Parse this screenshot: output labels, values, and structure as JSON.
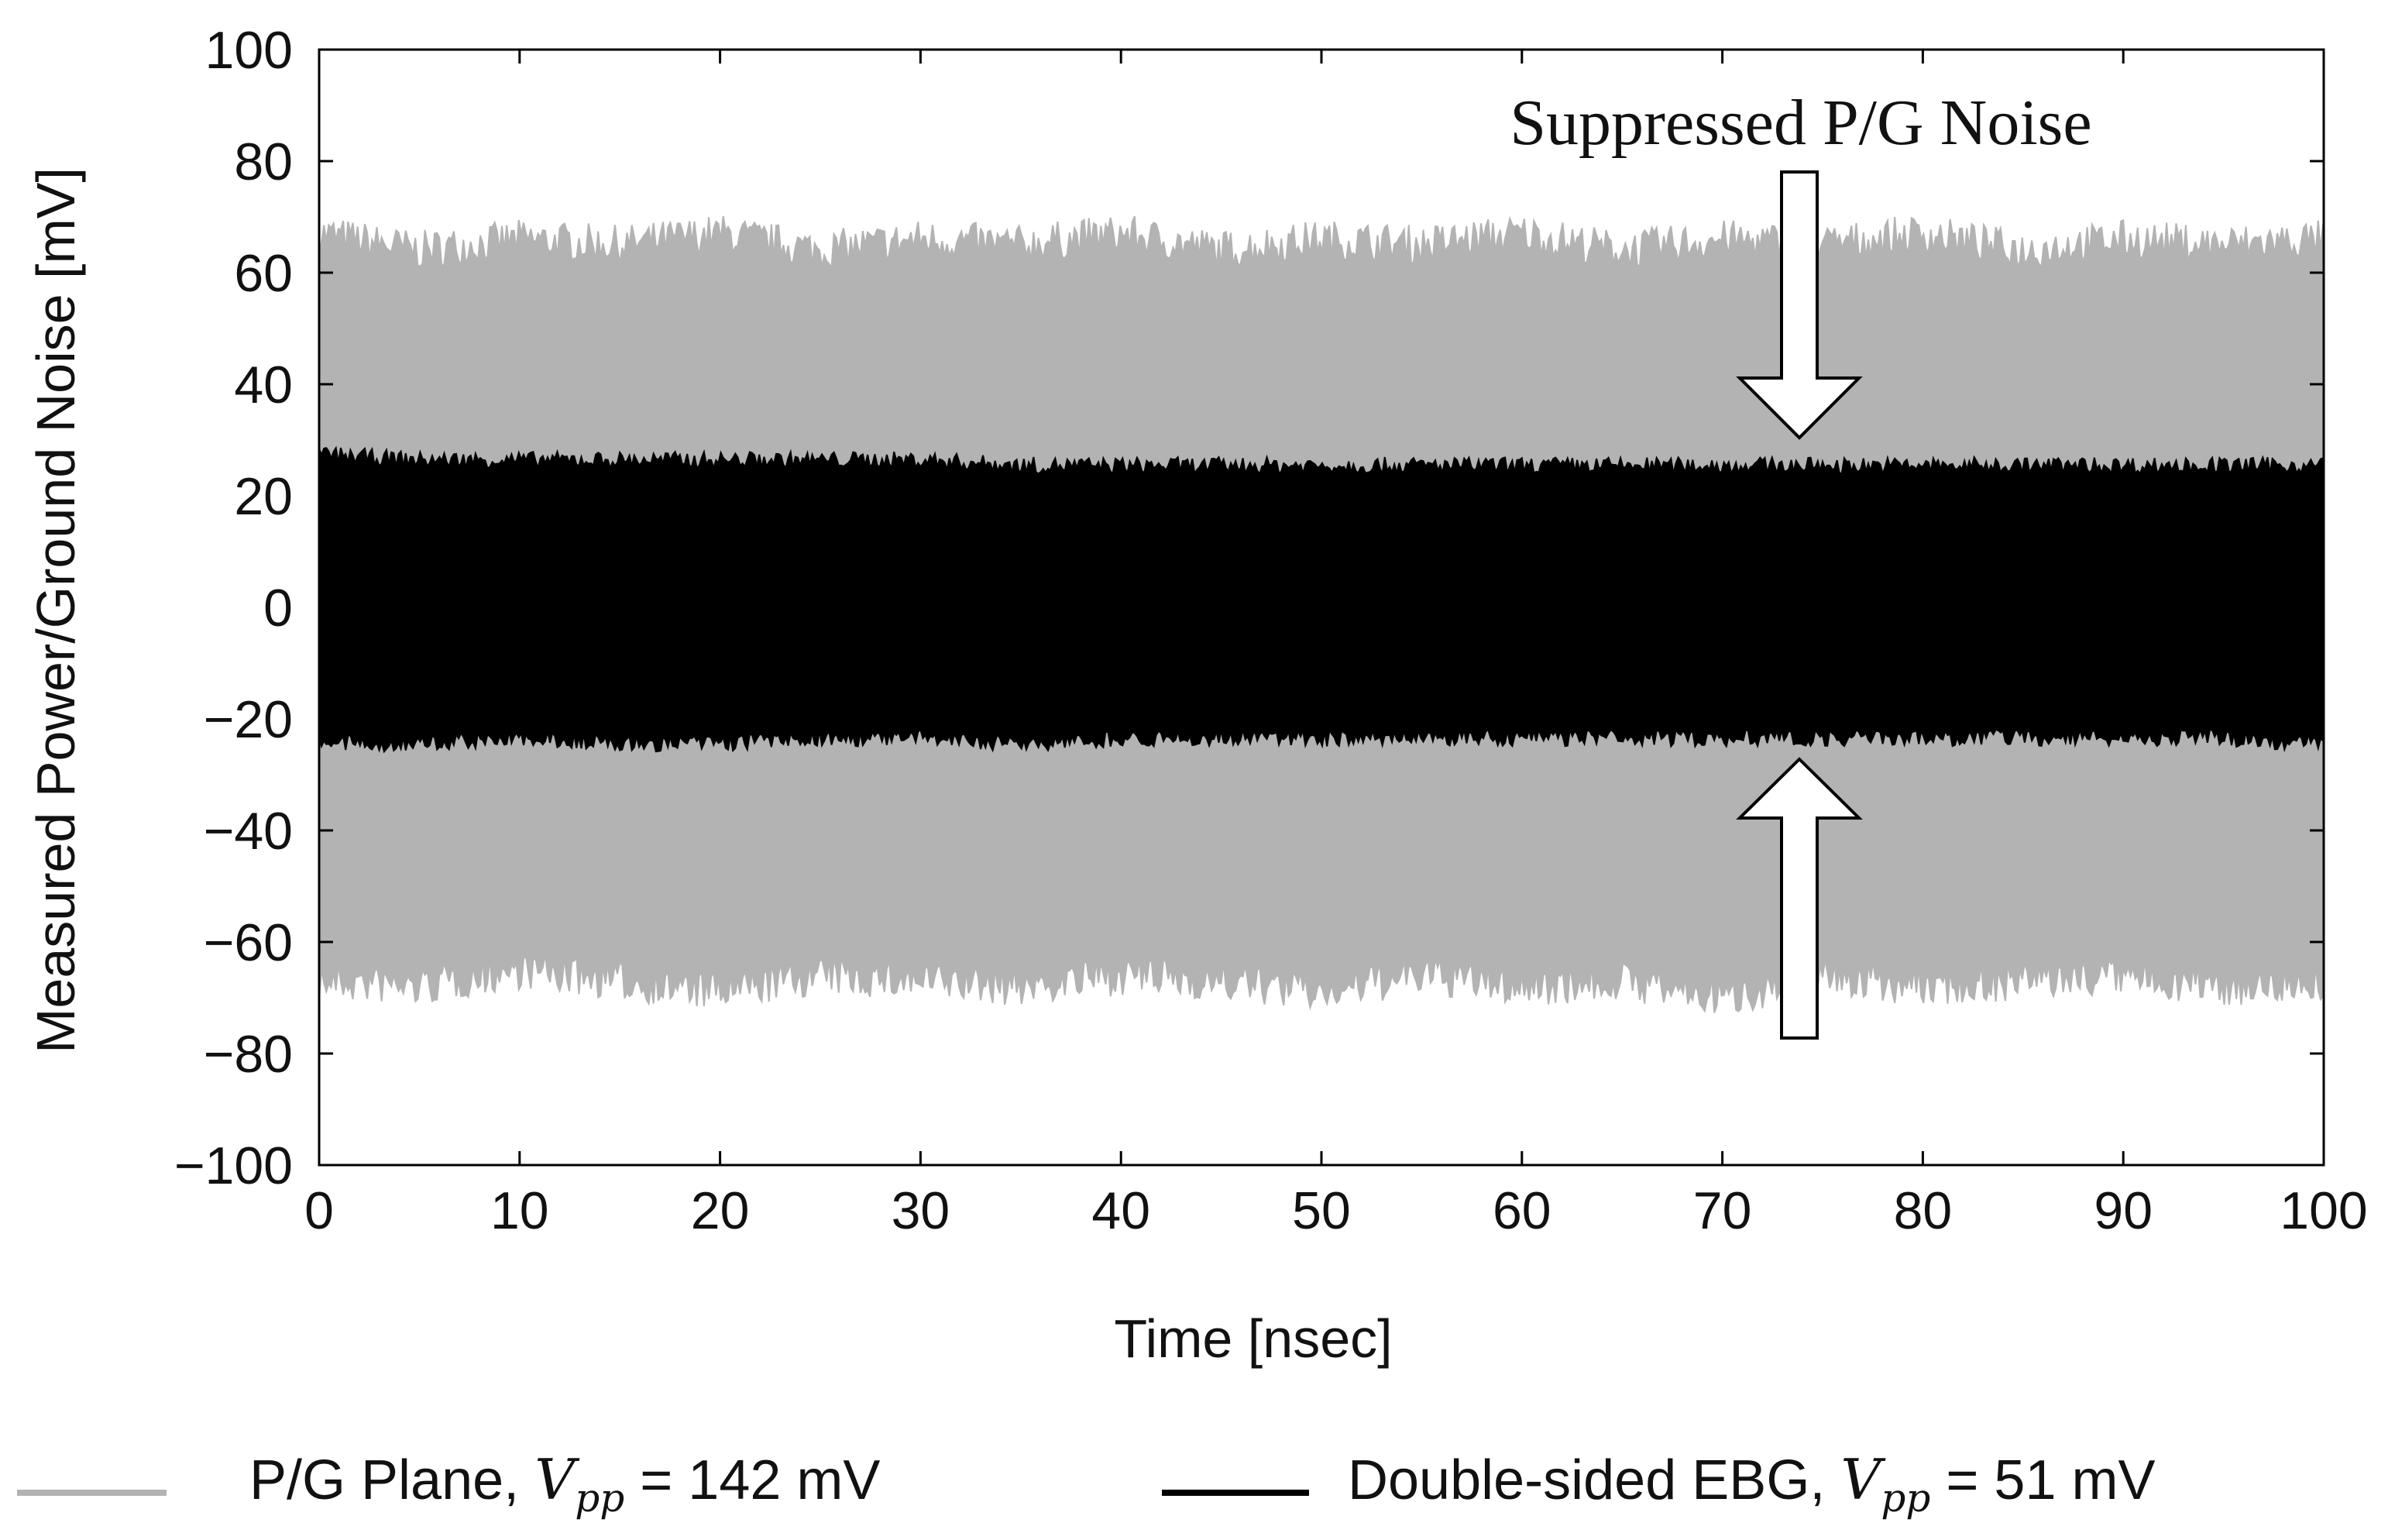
{
  "chart_data": {
    "type": "line",
    "title": "",
    "xlabel": "Time [nsec]",
    "ylabel": "Measured Power/Ground Noise [mV]",
    "xlim": [
      0,
      100
    ],
    "ylim": [
      -100,
      100
    ],
    "xticks": [
      "0",
      "10",
      "20",
      "30",
      "40",
      "50",
      "60",
      "70",
      "80",
      "90",
      "100"
    ],
    "yticks": [
      "100",
      "80",
      "60",
      "40",
      "20",
      "0",
      "−20",
      "−40",
      "−60",
      "−80",
      "−100"
    ],
    "grid": false,
    "annotation": "Suppressed P/G Noise",
    "series": [
      {
        "name": "P/G Plane",
        "legend_prefix": "P/G Plane, ",
        "legend_suffix": " = 142 mV",
        "vpp_mV": 142,
        "color": "#b3b3b3",
        "upper_envelope": {
          "x": [
            0,
            5,
            10,
            15,
            20,
            25,
            30,
            35,
            40,
            45,
            50,
            55,
            60,
            65,
            70,
            75,
            80,
            85,
            90,
            95,
            100
          ],
          "y": [
            66,
            63,
            65,
            64,
            66,
            63,
            65,
            64,
            66,
            63,
            65,
            64,
            66,
            63,
            65,
            64,
            66,
            63,
            65,
            64,
            65
          ]
        },
        "lower_envelope": {
          "x": [
            0,
            5,
            10,
            15,
            20,
            25,
            30,
            35,
            40,
            45,
            50,
            55,
            60,
            65,
            70,
            75,
            80,
            85,
            90,
            95,
            100
          ],
          "y": [
            -66,
            -67,
            -64,
            -66,
            -68,
            -65,
            -66,
            -67,
            -65,
            -66,
            -68,
            -65,
            -67,
            -66,
            -69,
            -65,
            -67,
            -66,
            -65,
            -67,
            -66
          ]
        }
      },
      {
        "name": "Double-sided EBG",
        "legend_prefix": "Double-sided EBG, ",
        "legend_suffix": " = 51 mV",
        "vpp_mV": 51,
        "color": "#000000",
        "upper_envelope": {
          "x": [
            0,
            5,
            10,
            15,
            20,
            25,
            30,
            35,
            40,
            45,
            50,
            55,
            60,
            65,
            70,
            75,
            80,
            85,
            90,
            95,
            100
          ],
          "y": [
            27,
            26,
            26,
            26,
            26,
            26,
            26,
            25,
            25,
            25,
            25,
            25,
            25,
            25,
            25,
            25,
            25,
            25,
            25,
            25,
            25
          ]
        },
        "lower_envelope": {
          "x": [
            0,
            5,
            10,
            15,
            20,
            25,
            30,
            35,
            40,
            45,
            50,
            55,
            60,
            65,
            70,
            75,
            80,
            85,
            90,
            95,
            100
          ],
          "y": [
            -24,
            -24,
            -23,
            -24,
            -24,
            -23,
            -23,
            -24,
            -23,
            -23,
            -23,
            -23,
            -23,
            -23,
            -23,
            -23,
            -23,
            -23,
            -23,
            -23,
            -24
          ]
        }
      }
    ],
    "legend": {
      "placement": "bottom",
      "vpp_symbol": "V",
      "vpp_subscript": "pp"
    }
  }
}
